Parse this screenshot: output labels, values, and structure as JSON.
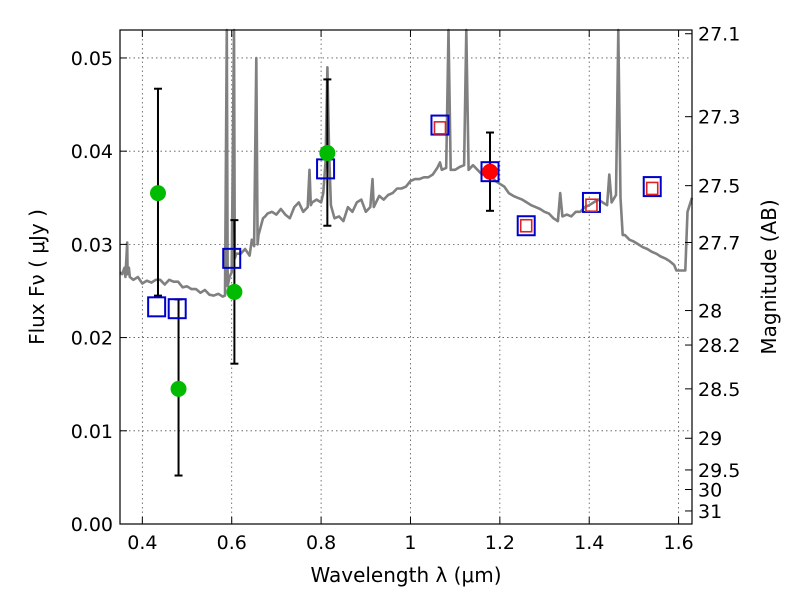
{
  "chart_data": {
    "type": "scatter",
    "xlabel": "Wavelength  λ (μm)",
    "ylabel": "Flux  Fν  ( μJy )",
    "ylabel_right": "Magnitude (AB)",
    "xlim": [
      0.35,
      1.63
    ],
    "ylim": [
      0.0,
      0.053
    ],
    "x_ticks": [
      {
        "value": 0.4,
        "label": "0.4"
      },
      {
        "value": 0.6,
        "label": "0.6"
      },
      {
        "value": 0.8,
        "label": "0.8"
      },
      {
        "value": 1.0,
        "label": "1"
      },
      {
        "value": 1.2,
        "label": "1.2"
      },
      {
        "value": 1.4,
        "label": "1.4"
      },
      {
        "value": 1.6,
        "label": "1.6"
      }
    ],
    "y_ticks": [
      {
        "value": 0.0,
        "label": "0.00"
      },
      {
        "value": 0.01,
        "label": "0.01"
      },
      {
        "value": 0.02,
        "label": "0.02"
      },
      {
        "value": 0.03,
        "label": "0.03"
      },
      {
        "value": 0.04,
        "label": "0.04"
      },
      {
        "value": 0.05,
        "label": "0.05"
      }
    ],
    "mag_ticks": [
      {
        "flux": 0.0526,
        "label": "27.1"
      },
      {
        "flux": 0.0437,
        "label": "27.3"
      },
      {
        "flux": 0.0363,
        "label": "27.5"
      },
      {
        "flux": 0.0302,
        "label": "27.7"
      },
      {
        "flux": 0.0229,
        "label": "28"
      },
      {
        "flux": 0.0192,
        "label": "28.2"
      },
      {
        "flux": 0.0145,
        "label": "28.5"
      },
      {
        "flux": 0.0092,
        "label": "29"
      },
      {
        "flux": 0.0058,
        "label": "29.5"
      },
      {
        "flux": 0.0037,
        "label": "30"
      },
      {
        "flux": 0.0014,
        "label": "31"
      }
    ],
    "series": [
      {
        "name": "observed-green",
        "marker": "circle",
        "color": "#00bb00",
        "points": [
          {
            "x": 0.435,
            "y": 0.0355,
            "yerr_low": 0.0245,
            "yerr_high": 0.0467
          },
          {
            "x": 0.481,
            "y": 0.0145,
            "yerr_low": 0.0052,
            "yerr_high": 0.0241
          },
          {
            "x": 0.606,
            "y": 0.0249,
            "yerr_low": 0.0172,
            "yerr_high": 0.0326
          },
          {
            "x": 0.814,
            "y": 0.0398,
            "yerr_low": 0.032,
            "yerr_high": 0.0477
          }
        ]
      },
      {
        "name": "observed-red",
        "marker": "circle",
        "color": "#ff0000",
        "points": [
          {
            "x": 1.178,
            "y": 0.0378,
            "yerr_low": 0.0336,
            "yerr_high": 0.042
          }
        ]
      },
      {
        "name": "model-blue",
        "marker": "open-square",
        "color": "#0000cc",
        "points": [
          {
            "x": 0.432,
            "y": 0.0233
          },
          {
            "x": 0.478,
            "y": 0.0231
          },
          {
            "x": 0.6,
            "y": 0.0285
          },
          {
            "x": 0.81,
            "y": 0.0381
          },
          {
            "x": 1.066,
            "y": 0.0428
          },
          {
            "x": 1.178,
            "y": 0.0378
          },
          {
            "x": 1.259,
            "y": 0.032
          },
          {
            "x": 1.405,
            "y": 0.0345
          },
          {
            "x": 1.541,
            "y": 0.0362
          }
        ]
      },
      {
        "name": "model-red-inner",
        "marker": "open-square-small",
        "color": "#dd2222",
        "points": [
          {
            "x": 1.066,
            "y": 0.0425
          },
          {
            "x": 1.259,
            "y": 0.032
          },
          {
            "x": 1.405,
            "y": 0.0342
          },
          {
            "x": 1.541,
            "y": 0.036
          }
        ]
      },
      {
        "name": "spectrum",
        "type": "line",
        "color": "#808080",
        "points": [
          [
            0.35,
            0.027
          ],
          [
            0.355,
            0.0268
          ],
          [
            0.36,
            0.0275
          ],
          [
            0.362,
            0.0265
          ],
          [
            0.366,
            0.0302
          ],
          [
            0.367,
            0.0268
          ],
          [
            0.37,
            0.0275
          ],
          [
            0.372,
            0.0265
          ],
          [
            0.38,
            0.0262
          ],
          [
            0.39,
            0.0265
          ],
          [
            0.4,
            0.0258
          ],
          [
            0.41,
            0.0261
          ],
          [
            0.42,
            0.0259
          ],
          [
            0.43,
            0.0262
          ],
          [
            0.44,
            0.0262
          ],
          [
            0.45,
            0.0257
          ],
          [
            0.46,
            0.0262
          ],
          [
            0.47,
            0.026
          ],
          [
            0.48,
            0.026
          ],
          [
            0.49,
            0.0254
          ],
          [
            0.5,
            0.0255
          ],
          [
            0.51,
            0.0252
          ],
          [
            0.52,
            0.0252
          ],
          [
            0.53,
            0.0248
          ],
          [
            0.54,
            0.0251
          ],
          [
            0.55,
            0.0246
          ],
          [
            0.56,
            0.0245
          ],
          [
            0.57,
            0.0247
          ],
          [
            0.58,
            0.0244
          ],
          [
            0.585,
            0.0245
          ],
          [
            0.589,
            0.053
          ],
          [
            0.591,
            0.0255
          ],
          [
            0.595,
            0.0265
          ],
          [
            0.6,
            0.027
          ],
          [
            0.605,
            0.053
          ],
          [
            0.607,
            0.0285
          ],
          [
            0.61,
            0.029
          ],
          [
            0.62,
            0.029
          ],
          [
            0.63,
            0.0295
          ],
          [
            0.64,
            0.0288
          ],
          [
            0.645,
            0.0305
          ],
          [
            0.65,
            0.0298
          ],
          [
            0.655,
            0.05
          ],
          [
            0.658,
            0.03
          ],
          [
            0.66,
            0.031
          ],
          [
            0.67,
            0.0328
          ],
          [
            0.675,
            0.033
          ],
          [
            0.68,
            0.0333
          ],
          [
            0.69,
            0.0335
          ],
          [
            0.7,
            0.0332
          ],
          [
            0.71,
            0.0338
          ],
          [
            0.715,
            0.0335
          ],
          [
            0.72,
            0.0332
          ],
          [
            0.73,
            0.0328
          ],
          [
            0.74,
            0.034
          ],
          [
            0.75,
            0.0345
          ],
          [
            0.76,
            0.0335
          ],
          [
            0.77,
            0.034
          ],
          [
            0.774,
            0.038
          ],
          [
            0.777,
            0.0342
          ],
          [
            0.78,
            0.0345
          ],
          [
            0.79,
            0.0348
          ],
          [
            0.8,
            0.0345
          ],
          [
            0.805,
            0.0355
          ],
          [
            0.81,
            0.039
          ],
          [
            0.814,
            0.049
          ],
          [
            0.818,
            0.04
          ],
          [
            0.822,
            0.0342
          ],
          [
            0.83,
            0.0328
          ],
          [
            0.84,
            0.033
          ],
          [
            0.85,
            0.0325
          ],
          [
            0.86,
            0.034
          ],
          [
            0.87,
            0.0335
          ],
          [
            0.88,
            0.0345
          ],
          [
            0.89,
            0.0348
          ],
          [
            0.9,
            0.0335
          ],
          [
            0.91,
            0.034
          ],
          [
            0.915,
            0.037
          ],
          [
            0.918,
            0.034
          ],
          [
            0.93,
            0.0352
          ],
          [
            0.94,
            0.0348
          ],
          [
            0.95,
            0.0353
          ],
          [
            0.96,
            0.0355
          ],
          [
            0.97,
            0.036
          ],
          [
            0.98,
            0.036
          ],
          [
            0.99,
            0.0362
          ],
          [
            1.0,
            0.0368
          ],
          [
            1.01,
            0.037
          ],
          [
            1.02,
            0.037
          ],
          [
            1.03,
            0.0372
          ],
          [
            1.04,
            0.0372
          ],
          [
            1.05,
            0.0375
          ],
          [
            1.06,
            0.0382
          ],
          [
            1.066,
            0.0388
          ],
          [
            1.07,
            0.038
          ],
          [
            1.08,
            0.0382
          ],
          [
            1.085,
            0.053
          ],
          [
            1.09,
            0.038
          ],
          [
            1.1,
            0.038
          ],
          [
            1.11,
            0.0383
          ],
          [
            1.12,
            0.0385
          ],
          [
            1.125,
            0.053
          ],
          [
            1.13,
            0.038
          ],
          [
            1.14,
            0.0385
          ],
          [
            1.15,
            0.038
          ],
          [
            1.16,
            0.0375
          ],
          [
            1.17,
            0.0375
          ],
          [
            1.18,
            0.0374
          ],
          [
            1.19,
            0.0368
          ],
          [
            1.2,
            0.0365
          ],
          [
            1.21,
            0.0362
          ],
          [
            1.22,
            0.0355
          ],
          [
            1.23,
            0.0352
          ],
          [
            1.24,
            0.035
          ],
          [
            1.25,
            0.0348
          ],
          [
            1.26,
            0.0345
          ],
          [
            1.27,
            0.0342
          ],
          [
            1.28,
            0.034
          ],
          [
            1.29,
            0.0338
          ],
          [
            1.3,
            0.0335
          ],
          [
            1.31,
            0.0333
          ],
          [
            1.32,
            0.0328
          ],
          [
            1.33,
            0.0325
          ],
          [
            1.335,
            0.0355
          ],
          [
            1.34,
            0.033
          ],
          [
            1.35,
            0.0332
          ],
          [
            1.36,
            0.033
          ],
          [
            1.37,
            0.0335
          ],
          [
            1.38,
            0.0335
          ],
          [
            1.39,
            0.034
          ],
          [
            1.4,
            0.0342
          ],
          [
            1.41,
            0.0345
          ],
          [
            1.42,
            0.0348
          ],
          [
            1.43,
            0.0345
          ],
          [
            1.44,
            0.0342
          ],
          [
            1.445,
            0.0375
          ],
          [
            1.45,
            0.0345
          ],
          [
            1.46,
            0.0353
          ],
          [
            1.465,
            0.053
          ],
          [
            1.47,
            0.035
          ],
          [
            1.475,
            0.031
          ],
          [
            1.48,
            0.031
          ],
          [
            1.49,
            0.0305
          ],
          [
            1.5,
            0.0303
          ],
          [
            1.51,
            0.03
          ],
          [
            1.52,
            0.0297
          ],
          [
            1.53,
            0.0295
          ],
          [
            1.54,
            0.0292
          ],
          [
            1.55,
            0.029
          ],
          [
            1.56,
            0.0287
          ],
          [
            1.57,
            0.0285
          ],
          [
            1.58,
            0.0282
          ],
          [
            1.59,
            0.0278
          ],
          [
            1.595,
            0.0272
          ],
          [
            1.61,
            0.0272
          ],
          [
            1.615,
            0.0272
          ],
          [
            1.62,
            0.0335
          ],
          [
            1.63,
            0.035
          ]
        ]
      }
    ]
  }
}
